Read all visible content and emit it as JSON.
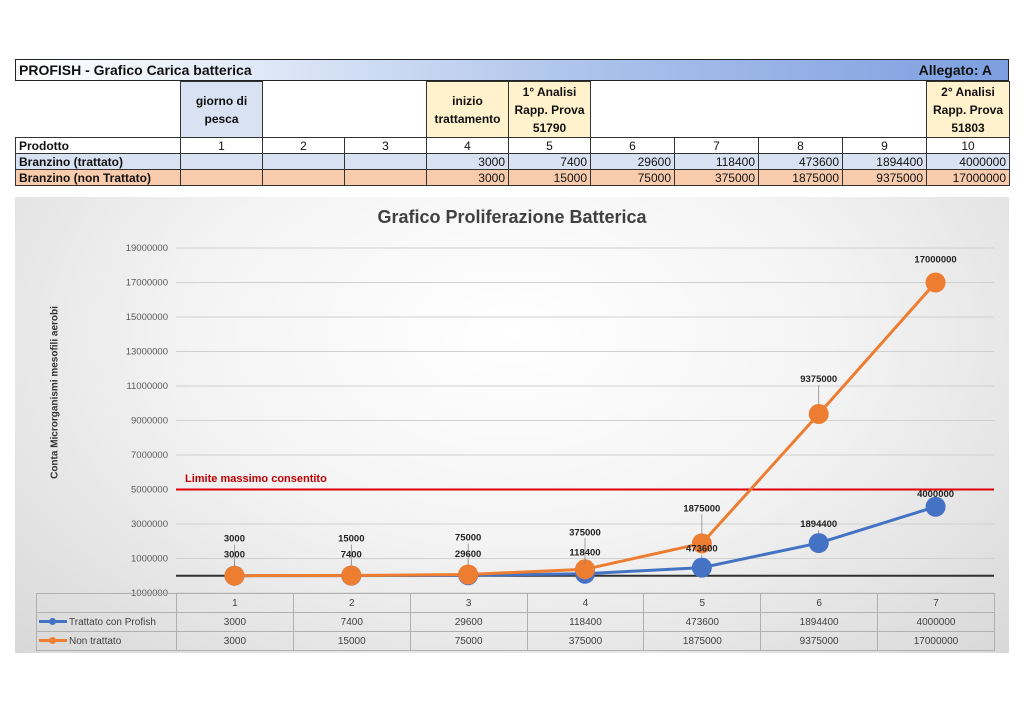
{
  "header": {
    "title": "PROFISH - Grafico Carica batterica",
    "attachment": "Allegato: A"
  },
  "columns": {
    "col1": "giorno di pesca",
    "col4": "inizio trattamento",
    "col5": "1° Analisi Rapp. Prova 51790",
    "col10": "2° Analisi Rapp. Prova 51803"
  },
  "table": {
    "product_label": "Prodotto",
    "day_numbers": [
      "1",
      "2",
      "3",
      "4",
      "5",
      "6",
      "7",
      "8",
      "9",
      "10"
    ],
    "rows": [
      {
        "label": "Branzino (trattato)",
        "values": [
          "",
          "",
          "",
          "3000",
          "7400",
          "29600",
          "118400",
          "473600",
          "1894400",
          "4000000"
        ]
      },
      {
        "label": "Branzino (non Trattato)",
        "values": [
          "",
          "",
          "",
          "3000",
          "15000",
          "75000",
          "375000",
          "1875000",
          "9375000",
          "17000000"
        ]
      }
    ]
  },
  "colors": {
    "treated": "#4472c4",
    "untreated": "#ed7d31",
    "limit": "#e00000",
    "blue_cell": "#d9e2f3",
    "orange_cell": "#f8cbad",
    "yellow_cell": "#fff2cc"
  },
  "chart_data": {
    "type": "line",
    "title": "Grafico Proliferazione Batterica",
    "ylabel": "Conta Microrganismi mesofili aerobi",
    "xlabel": "",
    "categories": [
      "1",
      "2",
      "3",
      "4",
      "5",
      "6",
      "7"
    ],
    "ylim": [
      -1000000,
      19000000
    ],
    "yticks": [
      -1000000,
      1000000,
      3000000,
      5000000,
      7000000,
      9000000,
      11000000,
      13000000,
      15000000,
      17000000,
      19000000
    ],
    "grid": true,
    "series": [
      {
        "name": "Trattato con Profish",
        "values": [
          3000,
          7400,
          29600,
          118400,
          473600,
          1894400,
          4000000
        ]
      },
      {
        "name": "Non trattato",
        "values": [
          3000,
          15000,
          75000,
          375000,
          1875000,
          9375000,
          17000000
        ]
      }
    ],
    "threshold": {
      "label": "Limite massimo consentito",
      "value": 5000000
    }
  }
}
